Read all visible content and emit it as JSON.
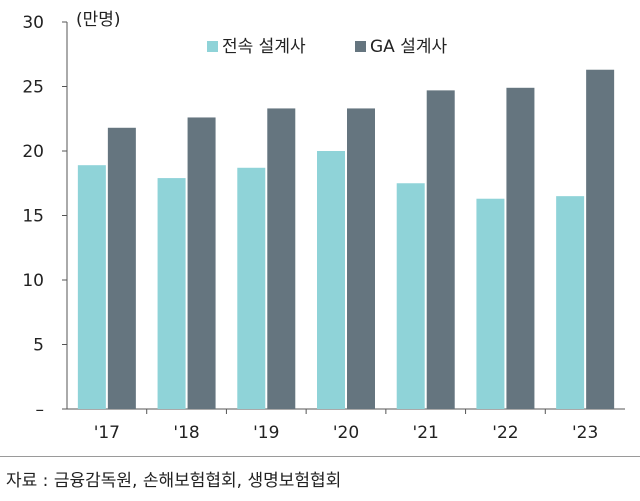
{
  "chart_data": {
    "type": "bar",
    "unit": "(만명)",
    "categories": [
      "'17",
      "'18",
      "'19",
      "'20",
      "'21",
      "'22",
      "'23"
    ],
    "series": [
      {
        "name": "전속 설계사",
        "color": "#8fd3d8",
        "values": [
          18.9,
          17.9,
          18.7,
          20.0,
          17.5,
          16.3,
          16.5
        ]
      },
      {
        "name": "GA 설계사",
        "color": "#65757f",
        "values": [
          21.8,
          22.6,
          23.3,
          23.3,
          24.7,
          24.9,
          26.3
        ]
      }
    ],
    "ylim": [
      0,
      30
    ],
    "yticks": [
      "–",
      "5",
      "10",
      "15",
      "20",
      "25",
      "30"
    ],
    "ytick_values": [
      0,
      5,
      10,
      15,
      20,
      25,
      30
    ],
    "legend_position": "top-center",
    "grid": false
  },
  "source": "자료 : 금융감독원, 손해보험협회, 생명보험협회"
}
